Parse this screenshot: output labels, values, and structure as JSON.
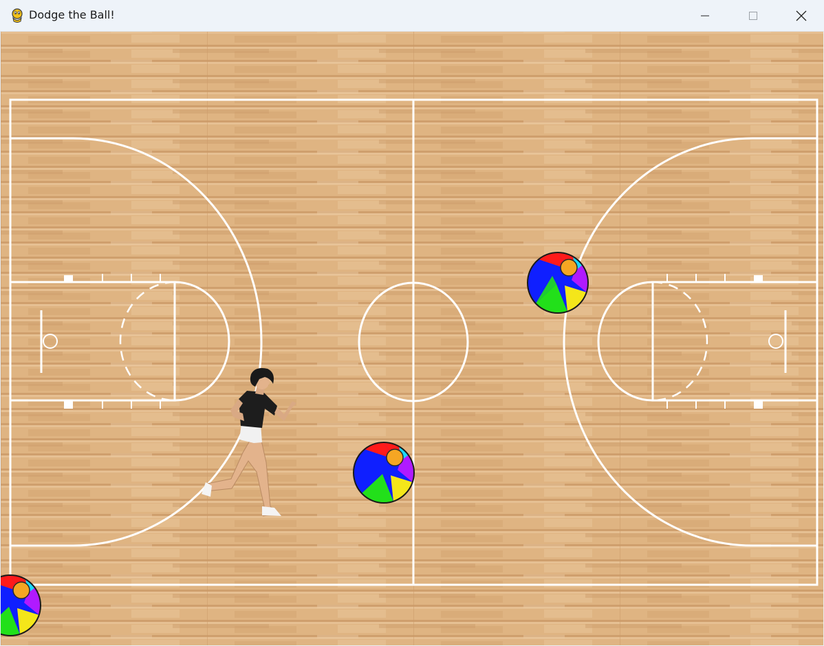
{
  "window": {
    "title": "Dodge the Ball!",
    "app_icon": "pygame-snake-icon",
    "controls": [
      "minimize-icon",
      "maximize-icon",
      "close-icon"
    ]
  },
  "scene": {
    "background": "basketball-court-wood-floor",
    "floor_colors": [
      "#d9ad7c",
      "#e2b987",
      "#cf9e6a"
    ],
    "line_color": "#ffffff",
    "sprites": {
      "player": "running-woman-black-shirt",
      "balls": [
        "beach-ball",
        "beach-ball",
        "beach-ball"
      ],
      "ball_colors": [
        "#ff1a1a",
        "#0f1fff",
        "#22e01a",
        "#f4e61a",
        "#b01aff",
        "#1ad8ff",
        "#f5a623"
      ]
    }
  }
}
